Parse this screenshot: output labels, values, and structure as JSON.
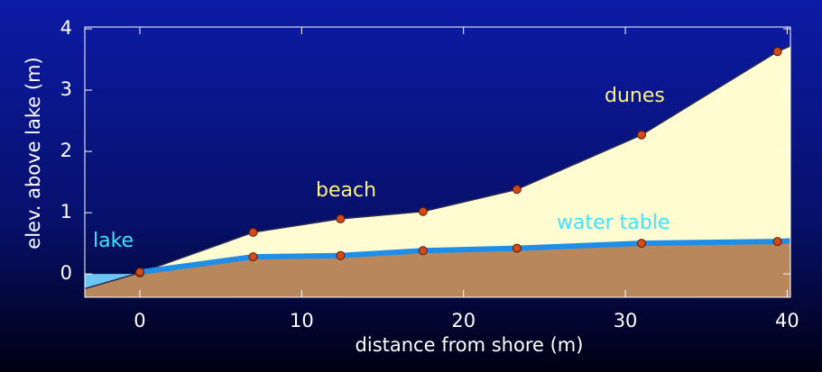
{
  "chart_data": {
    "type": "area",
    "x": [
      -3.4,
      0,
      7,
      12.4,
      17.5,
      23.3,
      31,
      39.4,
      40.2
    ],
    "series": [
      {
        "color": "#fffcd2",
        "values": [
          -0.24,
          0.02,
          0.68,
          0.9,
          1.02,
          1.38,
          2.27,
          3.63,
          3.72
        ]
      },
      {
        "name": "water table",
        "color": "#1f8ee8",
        "values": [
          null,
          0.03,
          0.28,
          0.3,
          0.38,
          0.42,
          0.5,
          0.53,
          0.54
        ]
      }
    ],
    "ground_color": "#b9875c",
    "lake_color": "#6cc6f2",
    "dot_color": "#d2491a",
    "xlim": [
      -3.4,
      40.2
    ],
    "ylim": [
      -0.38,
      4.03
    ],
    "xticks": [
      0,
      10,
      20,
      30,
      40
    ],
    "yticks": [
      0,
      1,
      2,
      3,
      4
    ],
    "xlabel": "distance from shore (m)",
    "ylabel": "elev. above lake (m)",
    "annotations": [
      "lake",
      "beach",
      "dunes"
    ]
  }
}
